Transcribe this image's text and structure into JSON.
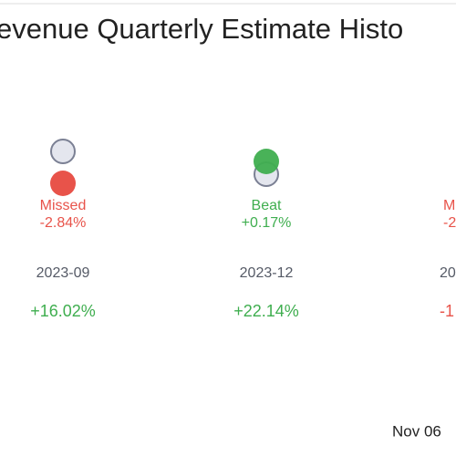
{
  "header": {
    "title": "evenue Quarterly Estimate Histo"
  },
  "columns": [
    {
      "status": "Missed",
      "surprise": "-2.84%",
      "date": "2023-09",
      "change": "+16.02%"
    },
    {
      "status": "Beat",
      "surprise": "+0.17%",
      "date": "2023-12",
      "change": "+22.14%"
    },
    {
      "status": "M",
      "surprise": "-2",
      "date": "20",
      "change": "-1"
    }
  ],
  "footer": {
    "date": "Nov 06"
  }
}
